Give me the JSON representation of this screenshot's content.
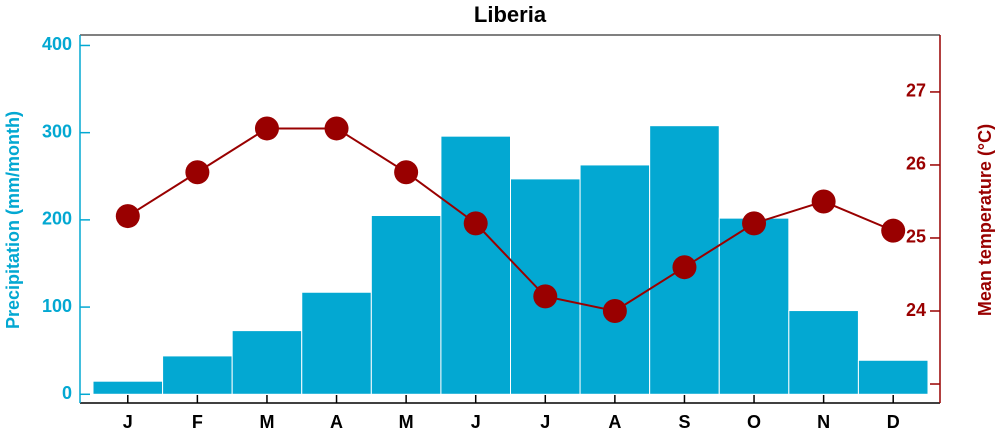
{
  "chart_data": {
    "type": "bar",
    "title": "Liberia",
    "categories": [
      "J",
      "F",
      "M",
      "A",
      "M",
      "J",
      "J",
      "A",
      "S",
      "O",
      "N",
      "D"
    ],
    "ylabel": "Precipitation (mm/month)",
    "y2label": "Mean temperature (°C)",
    "series": [
      {
        "name": "Precipitation",
        "type": "bar",
        "color": "#03a8d2",
        "values": [
          15,
          44,
          73,
          117,
          205,
          296,
          247,
          263,
          308,
          202,
          96,
          39
        ]
      },
      {
        "name": "Mean temperature",
        "type": "line",
        "axis": "y2",
        "color": "#990000",
        "values": [
          25.3,
          25.9,
          26.5,
          26.5,
          25.9,
          25.2,
          24.2,
          24.0,
          24.6,
          25.2,
          25.5,
          25.1
        ]
      }
    ],
    "ylim": [
      -10,
      412
    ],
    "yticks": [
      0,
      100,
      200,
      300,
      400
    ],
    "y2lim": [
      22.74,
      27.78
    ],
    "y2ticks": [
      23,
      24,
      25,
      26,
      27
    ]
  }
}
